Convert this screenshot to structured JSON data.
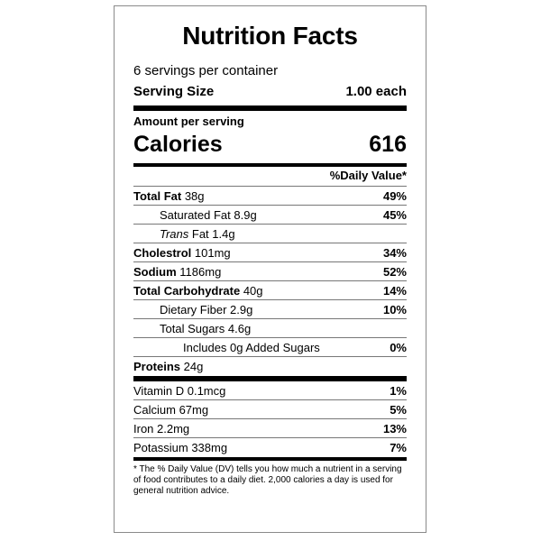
{
  "title": "Nutrition Facts",
  "servings_per_container": "6 servings per container",
  "serving_size": {
    "label": "Serving Size",
    "value": "1.00 each"
  },
  "amount_per_serving": "Amount per serving",
  "calories": {
    "label": "Calories",
    "value": "616"
  },
  "daily_value_header": "%Daily Value*",
  "nutrients": [
    {
      "name": "Total Fat",
      "amount": " 38g",
      "dv": "49%"
    },
    {
      "name": "Saturated Fat",
      "amount": " 8.9g",
      "dv": "45%"
    },
    {
      "name_italic": "Trans",
      "name": " Fat",
      "amount": " 1.4g",
      "dv": ""
    },
    {
      "name": "Cholestrol",
      "amount": " 101mg",
      "dv": "34%"
    },
    {
      "name": "Sodium",
      "amount": " 1186mg",
      "dv": "52%"
    },
    {
      "name": "Total Carbohydrate",
      "amount": " 40g",
      "dv": "14%"
    },
    {
      "name": "Dietary Fiber",
      "amount": " 2.9g",
      "dv": "10%"
    },
    {
      "name": "Total Sugars",
      "amount": " 4.6g",
      "dv": ""
    },
    {
      "name": "Includes 0g Added Sugars",
      "amount": "",
      "dv": "0%"
    },
    {
      "name": "Proteins",
      "amount": " 24g",
      "dv": ""
    }
  ],
  "vitamins": [
    {
      "name": "Vitamin D",
      "amount": " 0.1mcg",
      "dv": "1%"
    },
    {
      "name": "Calcium",
      "amount": " 67mg",
      "dv": "5%"
    },
    {
      "name": "Iron",
      "amount": " 2.2mg",
      "dv": "13%"
    },
    {
      "name": "Potassium",
      "amount": " 338mg",
      "dv": "7%"
    }
  ],
  "footnote": "* The % Daily Value (DV) tells you how much a nutrient in a serving of food contributes to a daily diet. 2,000 calories a day is used for general nutrition advice."
}
